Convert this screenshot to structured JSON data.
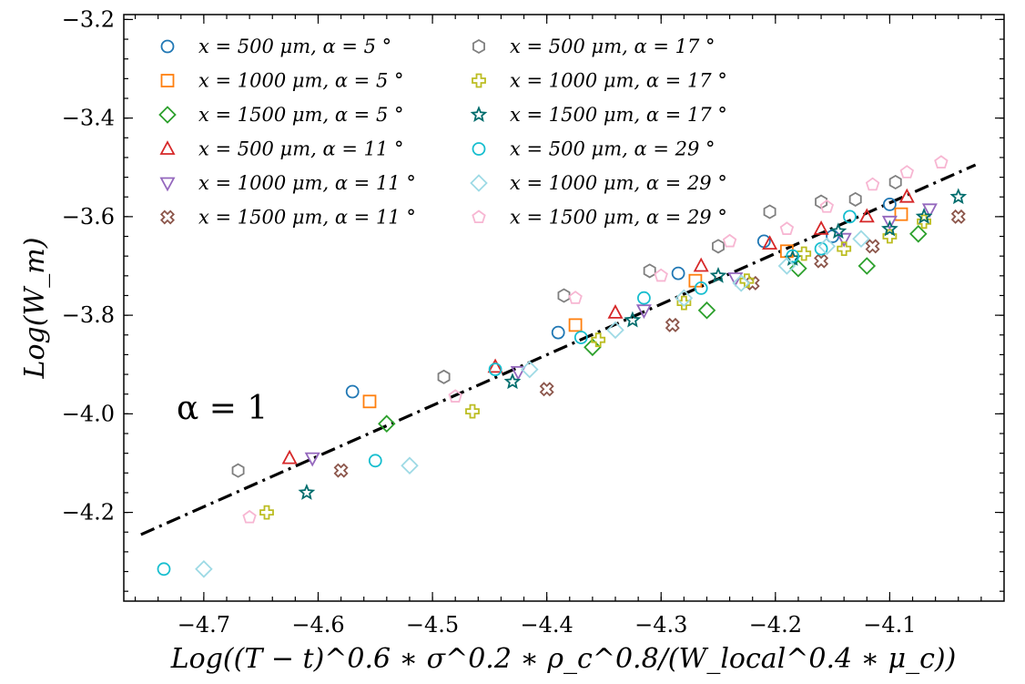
{
  "chart_data": {
    "type": "scatter",
    "title": "",
    "xlabel": "Log((T − t)^0.6 ∗ σ^0.2 ∗ ρ_c^0.8/(W_local^0.4 ∗ μ_c))",
    "ylabel": "Log(W_m)",
    "xlim": [
      -4.77,
      -4.0
    ],
    "ylim": [
      -4.38,
      -3.19
    ],
    "xticks": [
      -4.7,
      -4.6,
      -4.5,
      -4.4,
      -4.3,
      -4.2,
      -4.1
    ],
    "xtick_labels": [
      "−4.7",
      "−4.6",
      "−4.5",
      "−4.4",
      "−4.3",
      "−4.2",
      "−4.1"
    ],
    "yticks": [
      -4.2,
      -4.0,
      -3.8,
      -3.6,
      -3.4,
      -3.2
    ],
    "ytick_labels": [
      "−4.2",
      "−4.0",
      "−3.8",
      "−3.6",
      "−3.4",
      "−3.2"
    ],
    "grid": false,
    "legend_position": "top-left",
    "annotation": "α = 1",
    "fit_line": {
      "style": "dash-dot",
      "color": "#000000",
      "x": [
        -4.755,
        -4.025
      ],
      "y": [
        -4.245,
        -3.495
      ]
    },
    "series": [
      {
        "name": "x = 500 μm, α = 5 °",
        "marker": "circle",
        "color": "#1f77b4",
        "points": [
          [
            -4.57,
            -3.955
          ],
          [
            -4.39,
            -3.835
          ],
          [
            -4.285,
            -3.715
          ],
          [
            -4.21,
            -3.65
          ],
          [
            -4.15,
            -3.64
          ],
          [
            -4.1,
            -3.575
          ]
        ]
      },
      {
        "name": "x = 1000 μm, α = 5 °",
        "marker": "square",
        "color": "#ff7f0e",
        "points": [
          [
            -4.555,
            -3.975
          ],
          [
            -4.375,
            -3.82
          ],
          [
            -4.27,
            -3.73
          ],
          [
            -4.19,
            -3.67
          ],
          [
            -4.09,
            -3.595
          ]
        ]
      },
      {
        "name": "x = 1500 μm, α = 5 °",
        "marker": "diamond",
        "color": "#2ca02c",
        "points": [
          [
            -4.54,
            -4.02
          ],
          [
            -4.36,
            -3.865
          ],
          [
            -4.26,
            -3.79
          ],
          [
            -4.18,
            -3.705
          ],
          [
            -4.12,
            -3.7
          ],
          [
            -4.075,
            -3.635
          ]
        ]
      },
      {
        "name": "x = 500 μm, α = 11 °",
        "marker": "triangle-up",
        "color": "#d62728",
        "points": [
          [
            -4.625,
            -4.09
          ],
          [
            -4.445,
            -3.905
          ],
          [
            -4.34,
            -3.795
          ],
          [
            -4.265,
            -3.7
          ],
          [
            -4.205,
            -3.655
          ],
          [
            -4.16,
            -3.625
          ],
          [
            -4.12,
            -3.6
          ],
          [
            -4.085,
            -3.56
          ]
        ]
      },
      {
        "name": "x = 1000 μm, α = 11 °",
        "marker": "triangle-down",
        "color": "#9467bd",
        "points": [
          [
            -4.605,
            -4.09
          ],
          [
            -4.425,
            -3.915
          ],
          [
            -4.315,
            -3.79
          ],
          [
            -4.235,
            -3.725
          ],
          [
            -4.14,
            -3.645
          ],
          [
            -4.1,
            -3.61
          ],
          [
            -4.065,
            -3.585
          ]
        ]
      },
      {
        "name": "x = 1500 μm, α = 11 °",
        "marker": "x-thick",
        "color": "#8c564b",
        "points": [
          [
            -4.58,
            -4.115
          ],
          [
            -4.4,
            -3.95
          ],
          [
            -4.29,
            -3.82
          ],
          [
            -4.22,
            -3.735
          ],
          [
            -4.16,
            -3.69
          ],
          [
            -4.115,
            -3.66
          ],
          [
            -4.04,
            -3.6
          ]
        ]
      },
      {
        "name": "x = 500 μm, α = 17 °",
        "marker": "hexagon",
        "color": "#7f7f7f",
        "points": [
          [
            -4.67,
            -4.115
          ],
          [
            -4.49,
            -3.925
          ],
          [
            -4.385,
            -3.76
          ],
          [
            -4.31,
            -3.71
          ],
          [
            -4.25,
            -3.66
          ],
          [
            -4.205,
            -3.59
          ],
          [
            -4.16,
            -3.57
          ],
          [
            -4.13,
            -3.565
          ],
          [
            -4.095,
            -3.53
          ]
        ]
      },
      {
        "name": "x = 1000 μm, α = 17 °",
        "marker": "plus-thick",
        "color": "#bcbd22",
        "points": [
          [
            -4.645,
            -4.2
          ],
          [
            -4.465,
            -3.995
          ],
          [
            -4.355,
            -3.85
          ],
          [
            -4.28,
            -3.775
          ],
          [
            -4.225,
            -3.73
          ],
          [
            -4.175,
            -3.675
          ],
          [
            -4.14,
            -3.665
          ],
          [
            -4.1,
            -3.64
          ],
          [
            -4.07,
            -3.61
          ]
        ]
      },
      {
        "name": "x = 1500 μm, α = 17 °",
        "marker": "star",
        "color": "#006d6d",
        "points": [
          [
            -4.61,
            -4.16
          ],
          [
            -4.43,
            -3.935
          ],
          [
            -4.325,
            -3.81
          ],
          [
            -4.25,
            -3.72
          ],
          [
            -4.185,
            -3.685
          ],
          [
            -4.145,
            -3.63
          ],
          [
            -4.1,
            -3.625
          ],
          [
            -4.07,
            -3.6
          ],
          [
            -4.04,
            -3.56
          ]
        ]
      },
      {
        "name": "x = 500 μm, α = 29 °",
        "marker": "circle",
        "color": "#17becf",
        "points": [
          [
            -4.735,
            -4.315
          ],
          [
            -4.55,
            -4.095
          ],
          [
            -4.445,
            -3.91
          ],
          [
            -4.37,
            -3.845
          ],
          [
            -4.315,
            -3.765
          ],
          [
            -4.265,
            -3.745
          ],
          [
            -4.185,
            -3.68
          ],
          [
            -4.16,
            -3.665
          ],
          [
            -4.135,
            -3.6
          ]
        ]
      },
      {
        "name": "x = 1000 μm, α = 29 °",
        "marker": "diamond",
        "color": "#9edae5",
        "points": [
          [
            -4.7,
            -4.315
          ],
          [
            -4.52,
            -4.105
          ],
          [
            -4.415,
            -3.91
          ],
          [
            -4.34,
            -3.83
          ],
          [
            -4.28,
            -3.765
          ],
          [
            -4.23,
            -3.735
          ],
          [
            -4.19,
            -3.7
          ],
          [
            -4.155,
            -3.66
          ],
          [
            -4.125,
            -3.645
          ]
        ]
      },
      {
        "name": "x = 1500 μm, α = 29 °",
        "marker": "pentagon",
        "color": "#f7b6d2",
        "points": [
          [
            -4.66,
            -4.21
          ],
          [
            -4.48,
            -3.965
          ],
          [
            -4.375,
            -3.765
          ],
          [
            -4.3,
            -3.72
          ],
          [
            -4.24,
            -3.65
          ],
          [
            -4.19,
            -3.625
          ],
          [
            -4.155,
            -3.58
          ],
          [
            -4.115,
            -3.535
          ],
          [
            -4.085,
            -3.51
          ],
          [
            -4.055,
            -3.49
          ]
        ]
      }
    ]
  }
}
